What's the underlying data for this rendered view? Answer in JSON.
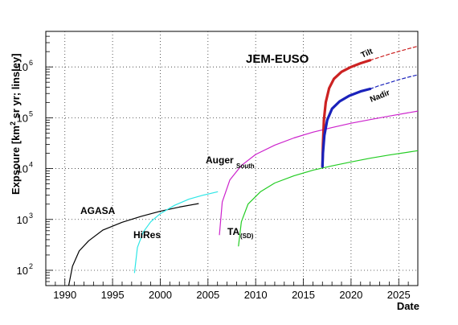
{
  "chart_data": {
    "type": "line",
    "title": "JEM-EUSO",
    "xlabel": "Date",
    "ylabel_main": "Expsoure [km",
    "ylabel_sup": "2",
    "ylabel_rest": " sr yr; linsley]",
    "xlim": [
      1988,
      2027
    ],
    "ylim": [
      50,
      5000000
    ],
    "yscale": "log",
    "grid": true,
    "x_ticks": [
      1990,
      1995,
      2000,
      2005,
      2010,
      2015,
      2020,
      2025
    ],
    "x_tick_labels": [
      "1990",
      "1995",
      "2000",
      "2005",
      "2010",
      "2015",
      "2020",
      "2025"
    ],
    "y_ticks": [
      100,
      1000,
      10000,
      100000,
      1000000
    ],
    "y_tick_labels": [
      {
        "base": "10",
        "exp": "2"
      },
      {
        "base": "10",
        "exp": "3"
      },
      {
        "base": "10",
        "exp": "4"
      },
      {
        "base": "10",
        "exp": "5"
      },
      {
        "base": "10",
        "exp": "6"
      }
    ],
    "series": [
      {
        "key": "agasa",
        "name": "AGASA",
        "color": "#000000",
        "width": 1.2,
        "dash": "",
        "x": [
          1990.3,
          1990.8,
          1991.5,
          1992.5,
          1994,
          1996,
          1998,
          2000,
          2002,
          2004
        ],
        "y": [
          40,
          120,
          240,
          380,
          620,
          880,
          1150,
          1450,
          1750,
          2050
        ]
      },
      {
        "key": "hires",
        "name": "HiRes",
        "color": "#2ee6e6",
        "width": 1.2,
        "dash": "",
        "x": [
          1997.3,
          1997.6,
          1998.2,
          1999,
          2000,
          2001.5,
          2003,
          2004.5,
          2006
        ],
        "y": [
          90,
          280,
          560,
          900,
          1300,
          1900,
          2500,
          3000,
          3500
        ]
      },
      {
        "key": "auger",
        "name": "Auger",
        "name_sub": "South",
        "color": "#cc22cc",
        "width": 1.2,
        "dash": "",
        "x": [
          2006.2,
          2006.5,
          2007.3,
          2008.5,
          2010,
          2012,
          2014,
          2016,
          2018,
          2020,
          2022,
          2024,
          2027
        ],
        "y": [
          500,
          2200,
          6000,
          11500,
          19000,
          29000,
          40000,
          52000,
          64000,
          78000,
          92000,
          108000,
          135000
        ]
      },
      {
        "key": "ta",
        "name": "TA",
        "name_sub": "(SD)",
        "color": "#22cc22",
        "width": 1.2,
        "dash": "",
        "x": [
          2008.2,
          2008.5,
          2009.2,
          2010.5,
          2012,
          2014,
          2016,
          2018,
          2020,
          2022,
          2024,
          2027
        ],
        "y": [
          300,
          900,
          2000,
          3500,
          5200,
          7200,
          9300,
          11300,
          13500,
          16000,
          18500,
          22500
        ]
      },
      {
        "key": "tilt",
        "name": "Tilt",
        "color": "#cc2222",
        "width": 3.2,
        "dash": "",
        "x": [
          2017.0,
          2017.05,
          2017.15,
          2017.35,
          2017.7,
          2018.2,
          2019,
          2020,
          2021,
          2022
        ],
        "y": [
          11000,
          30000,
          90000,
          200000,
          380000,
          580000,
          800000,
          1000000,
          1180000,
          1350000
        ]
      },
      {
        "key": "tilt_ext",
        "name": "",
        "color": "#cc2222",
        "width": 1.2,
        "dash": "4 3",
        "x": [
          2022,
          2023,
          2024,
          2025,
          2026,
          2027
        ],
        "y": [
          1350000,
          1550000,
          1780000,
          2020000,
          2280000,
          2550000
        ]
      },
      {
        "key": "nadir",
        "name": "Nadir",
        "color": "#1a22bb",
        "width": 3.2,
        "dash": "",
        "x": [
          2017.0,
          2017.05,
          2017.2,
          2017.5,
          2018,
          2018.8,
          2019.8,
          2021,
          2022
        ],
        "y": [
          11000,
          20000,
          45000,
          90000,
          150000,
          210000,
          270000,
          330000,
          370000
        ]
      },
      {
        "key": "nadir_ext",
        "name": "",
        "color": "#1a22bb",
        "width": 1.2,
        "dash": "4 3",
        "x": [
          2022,
          2023,
          2024,
          2025,
          2026,
          2027
        ],
        "y": [
          370000,
          430000,
          490000,
          560000,
          630000,
          700000
        ]
      }
    ]
  }
}
